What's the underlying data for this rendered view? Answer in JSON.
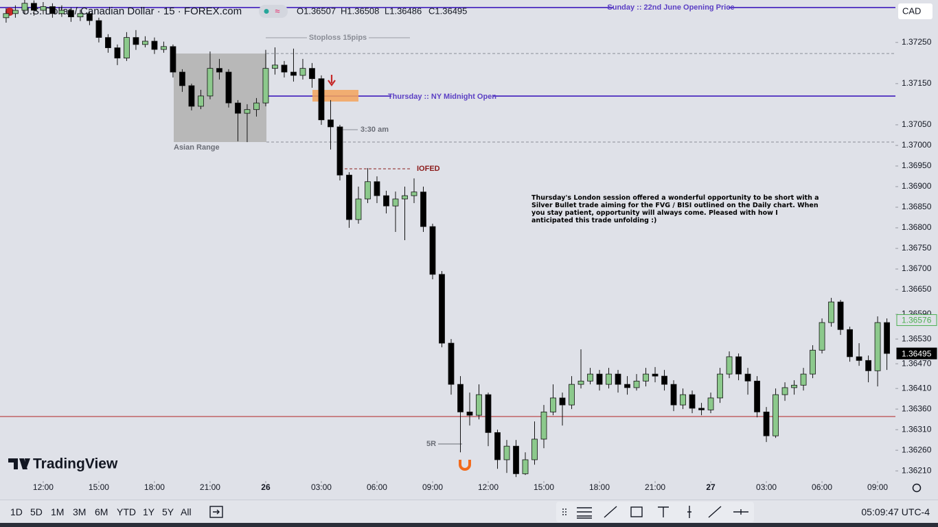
{
  "header": {
    "symbol": "U.S. Dollar / Canadian Dollar · 15 · FOREX.com",
    "ohlc": [
      "O1.36507",
      "H1.36508",
      "L1.36486",
      "C1.36495"
    ],
    "currency": "CAD"
  },
  "chart_data": {
    "type": "candlestick",
    "columns": [
      "t",
      "open",
      "high",
      "low",
      "close"
    ],
    "up_color": "#8cc98c",
    "down_color": "#000000",
    "xlim": [
      9.67,
      57.96
    ],
    "ylim": [
      1.36187,
      1.37353
    ],
    "grid": false,
    "xticks": [
      {
        "value": 12,
        "label": "12:00"
      },
      {
        "value": 15,
        "label": "15:00"
      },
      {
        "value": 18,
        "label": "18:00"
      },
      {
        "value": 21,
        "label": "21:00"
      },
      {
        "value": 24,
        "label": "26"
      },
      {
        "value": 27,
        "label": "03:00"
      },
      {
        "value": 30,
        "label": "06:00"
      },
      {
        "value": 33,
        "label": "09:00"
      },
      {
        "value": 36,
        "label": "12:00"
      },
      {
        "value": 39,
        "label": "15:00"
      },
      {
        "value": 42,
        "label": "18:00"
      },
      {
        "value": 45,
        "label": "21:00"
      },
      {
        "value": 48,
        "label": "27"
      },
      {
        "value": 51,
        "label": "03:00"
      },
      {
        "value": 54,
        "label": "06:00"
      },
      {
        "value": 57,
        "label": "09:00"
      }
    ],
    "yticks": [
      {
        "value": 1.3725,
        "label": "1.37250"
      },
      {
        "value": 1.3715,
        "label": "1.37150"
      },
      {
        "value": 1.3705,
        "label": "1.37050"
      },
      {
        "value": 1.37,
        "label": "1.37000"
      },
      {
        "value": 1.3695,
        "label": "1.36950"
      },
      {
        "value": 1.369,
        "label": "1.36900"
      },
      {
        "value": 1.3685,
        "label": "1.36850"
      },
      {
        "value": 1.368,
        "label": "1.36800"
      },
      {
        "value": 1.3675,
        "label": "1.36750"
      },
      {
        "value": 1.367,
        "label": "1.36700"
      },
      {
        "value": 1.3665,
        "label": "1.36650"
      },
      {
        "value": 1.3659,
        "label": "1.36590"
      },
      {
        "value": 1.3653,
        "label": "1.36530"
      },
      {
        "value": 1.3647,
        "label": "1.36470"
      },
      {
        "value": 1.3641,
        "label": "1.36410"
      },
      {
        "value": 1.3636,
        "label": "1.36360"
      },
      {
        "value": 1.3631,
        "label": "1.36310"
      },
      {
        "value": 1.3626,
        "label": "1.36260"
      },
      {
        "value": 1.3621,
        "label": "1.36210"
      }
    ],
    "price_tags": [
      {
        "value": 1.36576,
        "color": "#4caf50"
      },
      {
        "value": 1.36495,
        "color": "#000000"
      }
    ],
    "candles": [
      [
        10,
        1.3731,
        1.37333,
        1.37298,
        1.3732
      ],
      [
        10.5,
        1.3732,
        1.3734,
        1.3731,
        1.37328
      ],
      [
        11,
        1.37328,
        1.37353,
        1.37318,
        1.37345
      ],
      [
        11.5,
        1.37345,
        1.37352,
        1.37315,
        1.37328
      ],
      [
        12,
        1.37328,
        1.37348,
        1.37318,
        1.37337
      ],
      [
        12.5,
        1.37337,
        1.37345,
        1.3731,
        1.3732
      ],
      [
        13,
        1.3732,
        1.3734,
        1.37312,
        1.37328
      ],
      [
        13.5,
        1.37328,
        1.37335,
        1.373,
        1.37312
      ],
      [
        14,
        1.37312,
        1.3733,
        1.37302,
        1.3732
      ],
      [
        14.5,
        1.3732,
        1.37325,
        1.37292,
        1.37303
      ],
      [
        15,
        1.37303,
        1.3731,
        1.3725,
        1.37262
      ],
      [
        15.5,
        1.37262,
        1.3727,
        1.37225,
        1.37237
      ],
      [
        16,
        1.37237,
        1.37245,
        1.37195,
        1.37212
      ],
      [
        16.5,
        1.37212,
        1.37275,
        1.37205,
        1.37262
      ],
      [
        17,
        1.37262,
        1.3728,
        1.37232,
        1.37245
      ],
      [
        17.5,
        1.37245,
        1.37265,
        1.37238,
        1.37253
      ],
      [
        18,
        1.37253,
        1.37262,
        1.37222,
        1.37233
      ],
      [
        18.5,
        1.37233,
        1.37252,
        1.37225,
        1.3724
      ],
      [
        19,
        1.3724,
        1.37245,
        1.37165,
        1.37178
      ],
      [
        19.5,
        1.37178,
        1.37185,
        1.3713,
        1.37145
      ],
      [
        20,
        1.37145,
        1.3715,
        1.37085,
        1.37095
      ],
      [
        20.5,
        1.37095,
        1.37135,
        1.37088,
        1.3712
      ],
      [
        21,
        1.3712,
        1.37228,
        1.37112,
        1.37187
      ],
      [
        21.5,
        1.37187,
        1.3721,
        1.3716,
        1.37178
      ],
      [
        22,
        1.37178,
        1.37185,
        1.37092,
        1.37103
      ],
      [
        22.5,
        1.37103,
        1.3711,
        1.3701,
        1.37078
      ],
      [
        23,
        1.37078,
        1.371,
        1.37008,
        1.37087
      ],
      [
        23.5,
        1.37087,
        1.37115,
        1.3707,
        1.37103
      ],
      [
        24,
        1.37103,
        1.37232,
        1.37095,
        1.37187
      ],
      [
        24.5,
        1.37187,
        1.37238,
        1.37172,
        1.37195
      ],
      [
        25,
        1.37195,
        1.37205,
        1.37165,
        1.37178
      ],
      [
        25.5,
        1.37178,
        1.37235,
        1.37155,
        1.3717
      ],
      [
        26,
        1.3717,
        1.3721,
        1.3716,
        1.37187
      ],
      [
        26.5,
        1.37187,
        1.372,
        1.3714,
        1.37162
      ],
      [
        27,
        1.37162,
        1.3717,
        1.3705,
        1.37062
      ],
      [
        27.5,
        1.37062,
        1.3711,
        1.3699,
        1.37045
      ],
      [
        28,
        1.37045,
        1.3705,
        1.36915,
        1.36928
      ],
      [
        28.5,
        1.36928,
        1.36935,
        1.368,
        1.3682
      ],
      [
        29,
        1.3682,
        1.369,
        1.3681,
        1.3687
      ],
      [
        29.5,
        1.3687,
        1.36945,
        1.3686,
        1.36912
      ],
      [
        30,
        1.36912,
        1.36925,
        1.3686,
        1.36878
      ],
      [
        30.5,
        1.36878,
        1.3689,
        1.36835,
        1.36853
      ],
      [
        31,
        1.36853,
        1.36888,
        1.3679,
        1.3687
      ],
      [
        31.5,
        1.3687,
        1.369,
        1.3677,
        1.36878
      ],
      [
        32,
        1.36878,
        1.3692,
        1.3686,
        1.36887
      ],
      [
        32.5,
        1.36887,
        1.369,
        1.3679,
        1.36803
      ],
      [
        33,
        1.36803,
        1.3681,
        1.36675,
        1.36687
      ],
      [
        33.5,
        1.36687,
        1.36695,
        1.3651,
        1.3652
      ],
      [
        34,
        1.3652,
        1.3653,
        1.36395,
        1.3642
      ],
      [
        34.5,
        1.3642,
        1.3644,
        1.36255,
        1.36353
      ],
      [
        35,
        1.36353,
        1.364,
        1.3632,
        1.36345
      ],
      [
        35.5,
        1.36345,
        1.3642,
        1.36335,
        1.36395
      ],
      [
        36,
        1.36395,
        1.364,
        1.3627,
        1.36303
      ],
      [
        36.5,
        1.36303,
        1.3631,
        1.36215,
        1.36237
      ],
      [
        37,
        1.36237,
        1.36285,
        1.36205,
        1.3627
      ],
      [
        37.5,
        1.3627,
        1.36285,
        1.36195,
        1.36203
      ],
      [
        38,
        1.36203,
        1.36255,
        1.362,
        1.36237
      ],
      [
        38.5,
        1.36237,
        1.3633,
        1.36225,
        1.36287
      ],
      [
        39,
        1.36287,
        1.3637,
        1.36265,
        1.36353
      ],
      [
        39.5,
        1.36353,
        1.3642,
        1.36345,
        1.36387
      ],
      [
        40,
        1.36387,
        1.364,
        1.3632,
        1.3637
      ],
      [
        40.5,
        1.3637,
        1.3644,
        1.3636,
        1.3642
      ],
      [
        41,
        1.3642,
        1.36505,
        1.3641,
        1.36428
      ],
      [
        41.5,
        1.36428,
        1.3646,
        1.3642,
        1.36445
      ],
      [
        42,
        1.36445,
        1.36455,
        1.36405,
        1.3642
      ],
      [
        42.5,
        1.3642,
        1.3646,
        1.3641,
        1.36445
      ],
      [
        43,
        1.36445,
        1.36455,
        1.364,
        1.3642
      ],
      [
        43.5,
        1.3642,
        1.3644,
        1.36395,
        1.36412
      ],
      [
        44,
        1.36412,
        1.36445,
        1.36405,
        1.36428
      ],
      [
        44.5,
        1.36428,
        1.3646,
        1.36415,
        1.36445
      ],
      [
        45,
        1.36445,
        1.36462,
        1.36425,
        1.3644
      ],
      [
        45.5,
        1.3644,
        1.36455,
        1.36405,
        1.3642
      ],
      [
        46,
        1.3642,
        1.3643,
        1.36355,
        1.3637
      ],
      [
        46.5,
        1.3637,
        1.3641,
        1.3636,
        1.36395
      ],
      [
        47,
        1.36395,
        1.36405,
        1.3635,
        1.36362
      ],
      [
        47.5,
        1.36362,
        1.36375,
        1.36345,
        1.36358
      ],
      [
        48,
        1.36358,
        1.364,
        1.3635,
        1.36387
      ],
      [
        48.5,
        1.36387,
        1.3646,
        1.36375,
        1.36445
      ],
      [
        49,
        1.36445,
        1.365,
        1.36435,
        1.36487
      ],
      [
        49.5,
        1.36487,
        1.36495,
        1.3643,
        1.36445
      ],
      [
        50,
        1.36445,
        1.3646,
        1.36395,
        1.36428
      ],
      [
        50.5,
        1.36428,
        1.3644,
        1.3634,
        1.36353
      ],
      [
        51,
        1.36353,
        1.36365,
        1.3628,
        1.36295
      ],
      [
        51.5,
        1.36295,
        1.3641,
        1.3629,
        1.36395
      ],
      [
        52,
        1.36395,
        1.36425,
        1.3638,
        1.36412
      ],
      [
        52.5,
        1.36412,
        1.3643,
        1.36395,
        1.36418
      ],
      [
        53,
        1.36418,
        1.3646,
        1.36405,
        1.36445
      ],
      [
        53.5,
        1.36445,
        1.36515,
        1.36435,
        1.36503
      ],
      [
        54,
        1.36503,
        1.3658,
        1.36495,
        1.3657
      ],
      [
        54.5,
        1.3657,
        1.3663,
        1.3656,
        1.3662
      ],
      [
        55,
        1.3662,
        1.36625,
        1.3654,
        1.36553
      ],
      [
        55.5,
        1.36553,
        1.3656,
        1.36475,
        1.36487
      ],
      [
        56,
        1.36487,
        1.3652,
        1.36465,
        1.36478
      ],
      [
        56.5,
        1.36478,
        1.3649,
        1.36425,
        1.36453
      ],
      [
        57,
        1.36453,
        1.36585,
        1.36415,
        1.3657
      ],
      [
        57.5,
        1.3657,
        1.3658,
        1.36455,
        1.36495
      ]
    ]
  },
  "annotations": {
    "sunday_open": "Sunday :: 22nd June Opening Price",
    "ny_midnight": "Thursday :: NY Midnight Open",
    "stoploss": "Stoploss 15pips",
    "time_note": "3:30 am",
    "asian_range": "Asian Range",
    "iofed": "IOFED",
    "risk_reward": "5R",
    "note": "Thursday's London session offered a wonderful opportunity to be short with a Silver Bullet trade aiming for the FVG / BISI outlined on the Daily chart. When you stay patient, opportunity will always come. Pleased with how I anticipated this trade unfolding :)"
  },
  "branding": "TradingView",
  "toolbar": {
    "ranges": [
      "1D",
      "5D",
      "1M",
      "3M",
      "6M",
      "YTD",
      "1Y",
      "5Y",
      "All"
    ],
    "clock": "05:09:47 UTC-4"
  }
}
